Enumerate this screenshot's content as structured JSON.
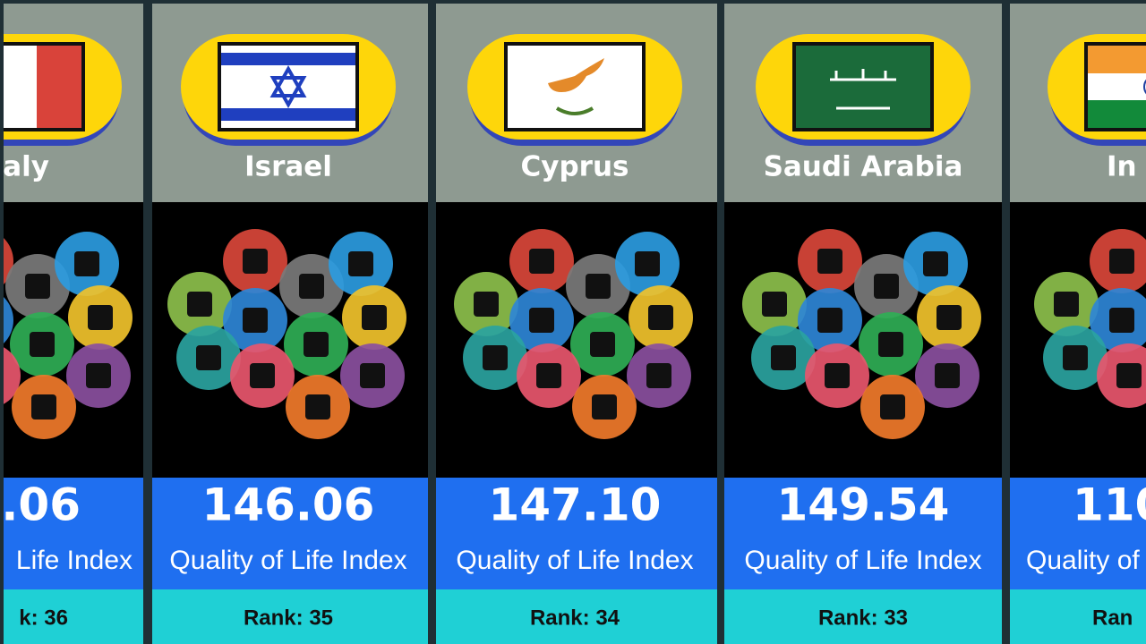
{
  "cards": [
    {
      "country": "aly",
      "score": ".06",
      "metric": "Life Index",
      "rank": "k: 36"
    },
    {
      "country": "Israel",
      "score": "146.06",
      "metric": "Quality of Life Index",
      "rank": "Rank: 35"
    },
    {
      "country": "Cyprus",
      "score": "147.10",
      "metric": "Quality of Life Index",
      "rank": "Rank: 34"
    },
    {
      "country": "Saudi Arabia",
      "score": "149.54",
      "metric": "Quality of Life Index",
      "rank": "Rank: 33"
    },
    {
      "country": "In",
      "score": "110",
      "metric": "Quality of",
      "rank": "Ran"
    }
  ]
}
